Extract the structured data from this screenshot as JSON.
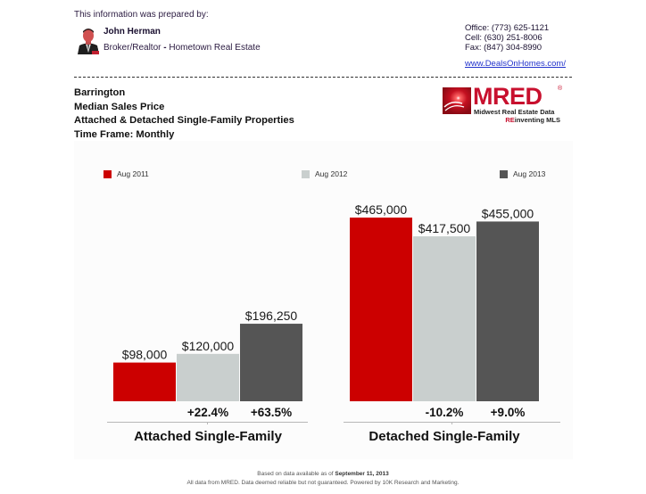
{
  "agent": {
    "prepared_by_label": "This information was prepared by:",
    "name": "John Herman",
    "title_prefix": "Broker/Realtor",
    "title_separator": " - ",
    "company": "Hometown Real Estate",
    "office": "Office: (773) 625-1121",
    "cell": "Cell: (630) 251-8006",
    "fax": "Fax: (847) 304-8990",
    "website": "www.DealsOnHomes.com/"
  },
  "report": {
    "location": "Barrington",
    "metric": "Median Sales Price",
    "property_types": "Attached & Detached Single-Family Properties",
    "time_frame": "Time Frame: Monthly"
  },
  "logo": {
    "wordmark": "MRED",
    "registered": "®",
    "tagline": "Midwest Real Estate Data",
    "sub_re": "RE",
    "sub_rest": "inventing MLS",
    "brand_color": "#c8102e"
  },
  "footer": {
    "line1_prefix": "Based on data available as of ",
    "line1_date": "September 11, 2013",
    "line2": "All data from MRED. Data deemed reliable but not guaranteed. Powered by 10K Research and Marketing."
  },
  "chart_data": {
    "type": "bar",
    "title": "Median Sales Price",
    "xlabel": "",
    "ylabel": "",
    "ylim": [
      0,
      500000
    ],
    "grid": false,
    "legend_position": "top",
    "categories": [
      "Attached Single-Family",
      "Detached Single-Family"
    ],
    "series": [
      {
        "name": "Aug 2011",
        "color": "#cc0000",
        "values": [
          98000,
          465000
        ],
        "value_labels": [
          "$98,000",
          "$465,000"
        ],
        "change_labels": [
          "",
          ""
        ]
      },
      {
        "name": "Aug 2012",
        "color": "#c9cfce",
        "values": [
          120000,
          417500
        ],
        "value_labels": [
          "$120,000",
          "$417,500"
        ],
        "change_labels": [
          "+22.4%",
          "-10.2%"
        ]
      },
      {
        "name": "Aug 2013",
        "color": "#555555",
        "values": [
          196250,
          455000
        ],
        "value_labels": [
          "$196,250",
          "$455,000"
        ],
        "change_labels": [
          "+63.5%",
          "+9.0%"
        ]
      }
    ]
  }
}
